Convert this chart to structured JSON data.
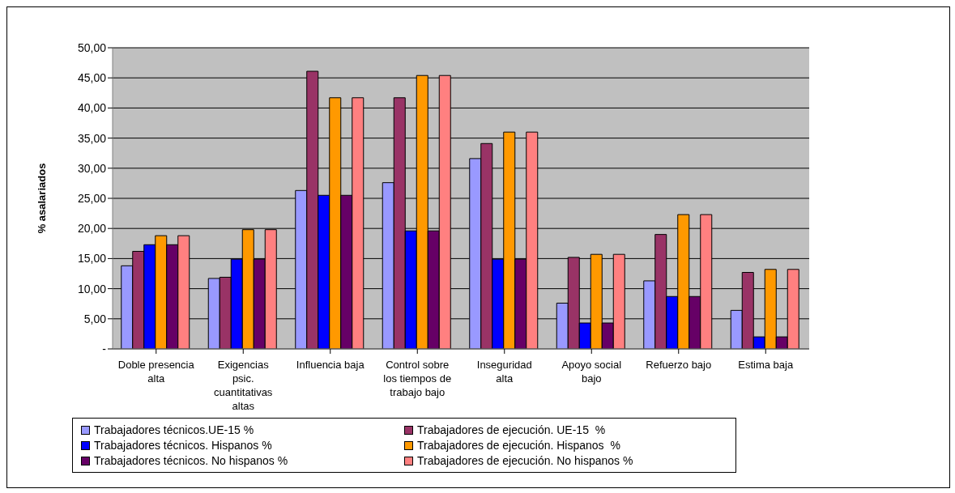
{
  "chart_data": {
    "type": "bar",
    "ylabel": "% asalariados",
    "categories": [
      "Doble presencia alta",
      "Exigencias psic. cuantitativas altas",
      "Influencia baja",
      "Control sobre los tiempos de trabajo bajo",
      "Inseguridad alta",
      "Apoyo social bajo",
      "Refuerzo bajo",
      "Estima baja"
    ],
    "series": [
      {
        "name": "Trabajadores técnicos.UE-15 %",
        "color": "#9999ff",
        "values": [
          13.8,
          11.7,
          26.3,
          27.6,
          31.6,
          7.6,
          11.3,
          6.4
        ]
      },
      {
        "name": "Trabajadores de ejecución. UE-15  %",
        "color": "#993366",
        "values": [
          16.2,
          11.9,
          46.1,
          41.7,
          34.1,
          15.2,
          19.0,
          12.7
        ]
      },
      {
        "name": "Trabajadores técnicos. Hispanos %",
        "color": "#0000ff",
        "values": [
          17.3,
          14.9,
          25.5,
          19.6,
          14.9,
          4.3,
          8.7,
          2.0
        ]
      },
      {
        "name": "Trabajadores de ejecución. Hispanos  %",
        "color": "#ff9900",
        "values": [
          18.8,
          19.8,
          41.7,
          45.4,
          36.0,
          15.7,
          22.3,
          13.2
        ]
      },
      {
        "name": "Trabajadores técnicos. No hispanos %",
        "color": "#660066",
        "values": [
          17.3,
          14.9,
          25.5,
          19.6,
          14.9,
          4.3,
          8.7,
          2.0
        ]
      },
      {
        "name": "Trabajadores de ejecución. No hispanos %",
        "color": "#ff8080",
        "values": [
          18.8,
          19.8,
          41.7,
          45.4,
          36.0,
          15.7,
          22.3,
          13.2
        ]
      }
    ],
    "ylim": [
      0,
      50
    ],
    "yticks": [
      {
        "value": 0,
        "label": "-"
      },
      {
        "value": 5,
        "label": "5,00"
      },
      {
        "value": 10,
        "label": "10,00"
      },
      {
        "value": 15,
        "label": "15,00"
      },
      {
        "value": 20,
        "label": "20,00"
      },
      {
        "value": 25,
        "label": "25,00"
      },
      {
        "value": 30,
        "label": "30,00"
      },
      {
        "value": 35,
        "label": "35,00"
      },
      {
        "value": 40,
        "label": "40,00"
      },
      {
        "value": 45,
        "label": "45,00"
      },
      {
        "value": 50,
        "label": "50,00"
      }
    ],
    "grid": "y",
    "legend": "bottom"
  }
}
